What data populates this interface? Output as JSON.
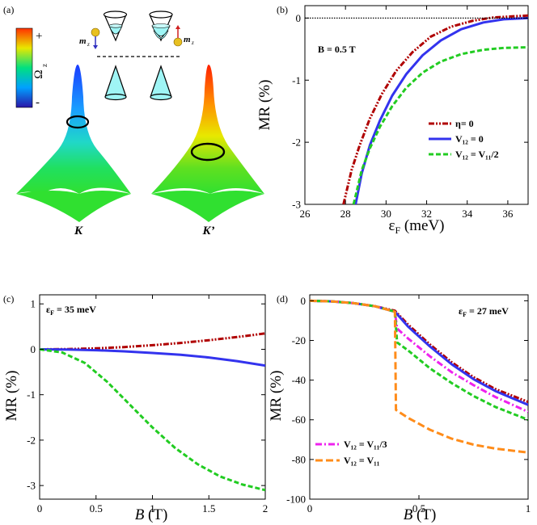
{
  "panel_a": {
    "label": "(a)",
    "colorbar": {
      "plus": "+",
      "minus": "-",
      "symbol": "Ω",
      "subscript": "z",
      "colors": [
        "#2a16a8",
        "#00a0ff",
        "#00e080",
        "#e8e800",
        "#ff3000"
      ]
    },
    "mz_label": "m",
    "mz_sub": "z",
    "K_label": "K",
    "Kp_label": "K’"
  },
  "panels": {
    "b": {
      "label": "(b)",
      "annot": "B = 0.5 T",
      "xlabel": "ε",
      "xlabel_sub": "F",
      "xlabel_unit": " (meV)",
      "ylabel": "MR (%)",
      "xticks": [
        "26",
        "28",
        "30",
        "32",
        "34",
        "36"
      ],
      "yticks": [
        "0",
        "-1",
        "-2",
        "-3"
      ],
      "legend": [
        "η= 0",
        "V₁₂ = 0",
        "V₁₂ = V₁₁/2"
      ]
    },
    "c": {
      "label": "(c)",
      "annot_main": "ε",
      "annot_sub": "F",
      "annot_rest": " = 35 meV",
      "xlabel": "B",
      "xlabel_unit": " (T)",
      "ylabel": "MR (%)",
      "xticks": [
        "0",
        "0.5",
        "1",
        "1.5",
        "2"
      ],
      "yticks": [
        "1",
        "0",
        "-1",
        "-2",
        "-3"
      ]
    },
    "d": {
      "label": "(d)",
      "annot_main": "ε",
      "annot_sub": "F",
      "annot_rest": " = 27 meV",
      "xlabel": "B",
      "xlabel_unit": " (T)",
      "ylabel": "MR (%)",
      "xticks": [
        "0",
        "0.5",
        "1"
      ],
      "yticks": [
        "0",
        "-20",
        "-40",
        "-60",
        "-80",
        "-100"
      ],
      "legend": [
        "V₁₂ = V₁₁/3",
        "V₁₂ = V₁₁"
      ]
    }
  },
  "chart_data": [
    {
      "panel": "b",
      "type": "line",
      "xlim": [
        26,
        37
      ],
      "ylim": [
        -3,
        0.2
      ],
      "grid": false,
      "legend_position": "center-right",
      "series": [
        {
          "name": "η= 0",
          "color": "#b00000",
          "x": [
            27.9,
            28.3,
            28.7,
            29.2,
            29.8,
            30.5,
            31.3,
            32.2,
            33.2,
            34.3,
            35.3,
            36.3,
            37.0
          ],
          "y": [
            -3.0,
            -2.45,
            -2.05,
            -1.62,
            -1.22,
            -0.85,
            -0.55,
            -0.3,
            -0.14,
            -0.04,
            0.01,
            0.03,
            0.04
          ]
        },
        {
          "name": "V₁₂ = 0",
          "color": "#3333ee",
          "x": [
            28.5,
            28.8,
            29.2,
            29.7,
            30.3,
            31.0,
            31.8,
            32.7,
            33.7,
            34.8,
            35.8,
            37.0
          ],
          "y": [
            -3.0,
            -2.5,
            -2.05,
            -1.65,
            -1.25,
            -0.9,
            -0.6,
            -0.36,
            -0.18,
            -0.07,
            -0.02,
            0.0
          ]
        },
        {
          "name": "V₁₂ = V₁₁/2",
          "color": "#22cc22",
          "x": [
            28.4,
            28.8,
            29.2,
            29.7,
            30.3,
            31.0,
            31.8,
            32.7,
            33.7,
            34.8,
            35.8,
            37.0
          ],
          "y": [
            -3.0,
            -2.45,
            -2.1,
            -1.75,
            -1.42,
            -1.12,
            -0.88,
            -0.7,
            -0.58,
            -0.51,
            -0.48,
            -0.47
          ]
        },
        {
          "name": "",
          "color": "#000000",
          "x": [
            26,
            37
          ],
          "y": [
            0,
            0
          ]
        }
      ]
    },
    {
      "panel": "c",
      "type": "line",
      "xlim": [
        0,
        2
      ],
      "ylim": [
        -3.3,
        1.2
      ],
      "grid": false,
      "series": [
        {
          "name": "η= 0",
          "color": "#b00000",
          "x": [
            0,
            0.25,
            0.5,
            0.75,
            1.0,
            1.25,
            1.5,
            1.75,
            2.0
          ],
          "y": [
            0,
            0.005,
            0.02,
            0.05,
            0.09,
            0.14,
            0.2,
            0.27,
            0.35
          ]
        },
        {
          "name": "V₁₂ = 0",
          "color": "#3333ee",
          "x": [
            0,
            0.25,
            0.5,
            0.75,
            1.0,
            1.25,
            1.5,
            1.75,
            2.0
          ],
          "y": [
            0,
            -0.005,
            -0.02,
            -0.045,
            -0.08,
            -0.12,
            -0.18,
            -0.26,
            -0.36
          ]
        },
        {
          "name": "V₁₂ = V₁₁/2",
          "color": "#22cc22",
          "x": [
            0,
            0.2,
            0.4,
            0.6,
            0.8,
            1.0,
            1.2,
            1.4,
            1.6,
            1.8,
            2.0
          ],
          "y": [
            0,
            -0.07,
            -0.3,
            -0.72,
            -1.22,
            -1.72,
            -2.17,
            -2.53,
            -2.8,
            -2.98,
            -3.1
          ]
        }
      ]
    },
    {
      "panel": "d",
      "type": "line",
      "xlim": [
        0,
        1
      ],
      "ylim": [
        -100,
        3
      ],
      "grid": false,
      "legend_position": "bottom-left",
      "series": [
        {
          "name": "η= 0",
          "color": "#b00000",
          "x": [
            0,
            0.1,
            0.2,
            0.3,
            0.39,
            0.45,
            0.55,
            0.65,
            0.75,
            0.85,
            1.0
          ],
          "y": [
            0,
            -0.3,
            -1.2,
            -2.8,
            -5,
            -12,
            -22,
            -31,
            -38.5,
            -44.5,
            -51
          ]
        },
        {
          "name": "V₁₂ = 0",
          "color": "#3333ee",
          "x": [
            0,
            0.1,
            0.2,
            0.3,
            0.39,
            0.45,
            0.55,
            0.65,
            0.75,
            0.85,
            1.0
          ],
          "y": [
            0,
            -0.3,
            -1.2,
            -2.8,
            -5.5,
            -13,
            -23,
            -32,
            -39.5,
            -45.5,
            -52.5
          ]
        },
        {
          "name": "V₁₂ = V₁₁/3",
          "color": "#ee22ee",
          "x": [
            0,
            0.1,
            0.2,
            0.3,
            0.39,
            0.4,
            0.45,
            0.55,
            0.65,
            0.75,
            0.85,
            1.0
          ],
          "y": [
            0,
            -0.3,
            -1.2,
            -2.8,
            -5.5,
            -14,
            -19,
            -28,
            -36,
            -42.5,
            -48.5,
            -56
          ]
        },
        {
          "name": "V₁₂ = V₁₁/2",
          "color": "#22cc22",
          "x": [
            0,
            0.1,
            0.2,
            0.3,
            0.39,
            0.4,
            0.45,
            0.55,
            0.65,
            0.75,
            0.85,
            1.0
          ],
          "y": [
            0,
            -0.3,
            -1.2,
            -2.8,
            -5.5,
            -21,
            -25,
            -34,
            -41.5,
            -48,
            -53.5,
            -60
          ]
        },
        {
          "name": "V₁₂ = V₁₁",
          "color": "#ff8c1a",
          "x": [
            0,
            0.1,
            0.2,
            0.3,
            0.39,
            0.395,
            0.45,
            0.55,
            0.65,
            0.75,
            0.85,
            1.0
          ],
          "y": [
            0,
            -0.3,
            -1.2,
            -2.8,
            -5.5,
            -55,
            -59,
            -65,
            -69.5,
            -72.5,
            -74.5,
            -76.5
          ]
        }
      ]
    }
  ]
}
